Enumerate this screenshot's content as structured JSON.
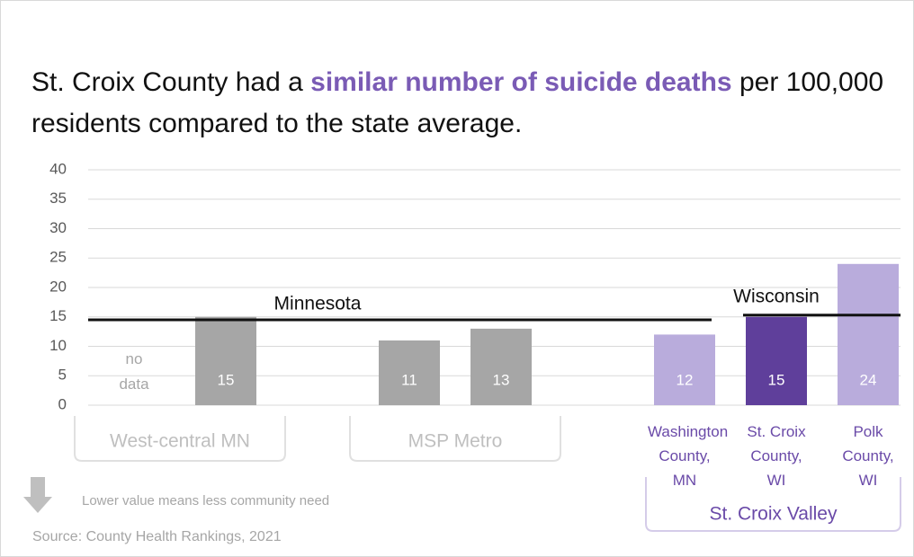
{
  "chart_data": {
    "type": "bar",
    "title_parts": [
      "St. Croix County had a ",
      "similar number of suicide deaths",
      " per 100,000 residents compared to the state average."
    ],
    "ylim": [
      0,
      40
    ],
    "yticks": [
      0,
      5,
      10,
      15,
      20,
      25,
      30,
      35,
      40
    ],
    "grid": true,
    "missing_label": "no data",
    "groups": [
      {
        "label": "West-central MN",
        "categories": [
          null,
          null
        ],
        "values": [
          null,
          15
        ],
        "colors": [
          "#a6a6a6",
          "#a6a6a6"
        ]
      },
      {
        "label": "MSP Metro",
        "categories": [
          null,
          null
        ],
        "values": [
          11,
          13
        ],
        "colors": [
          "#a6a6a6",
          "#a6a6a6"
        ]
      },
      {
        "label": "St. Croix Valley",
        "categories": [
          "Washington County, MN",
          "St. Croix County, WI",
          "Polk County, WI"
        ],
        "values": [
          12,
          15,
          24
        ],
        "colors": [
          "#b9acdc",
          "#5f3f9b",
          "#b9acdc"
        ]
      }
    ],
    "reference_lines": [
      {
        "label": "Minnesota",
        "value": 14.5
      },
      {
        "label": "Wisconsin",
        "value": 15.3
      }
    ],
    "note": "Lower value means less community need",
    "source": "Source: County Health Rankings, 2021"
  }
}
